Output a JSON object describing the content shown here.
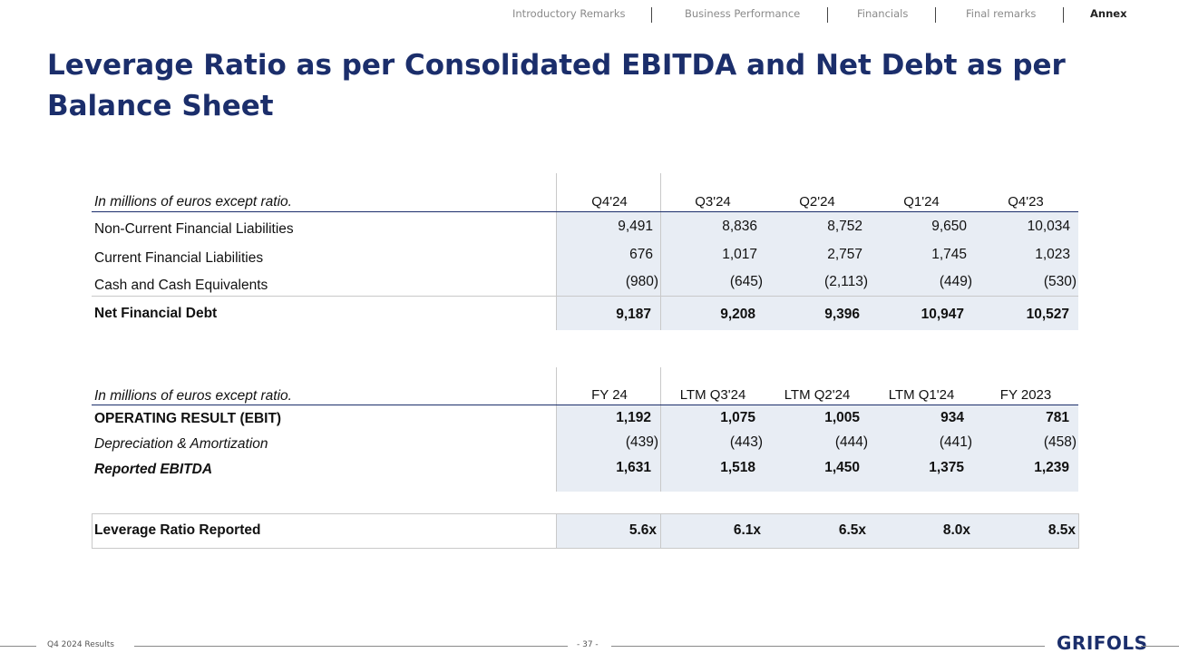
{
  "nav": {
    "items": [
      "Introductory Remarks",
      "Business Performance",
      "Financials",
      "Final remarks",
      "Annex"
    ]
  },
  "page": {
    "title": "Leverage Ratio as per Consolidated EBITDA and Net Debt as per Balance Sheet"
  },
  "table1": {
    "caption": "In millions of euros except ratio.",
    "columns": [
      "Q4'24",
      "Q3'24",
      "Q2'24",
      "Q1'24",
      "Q4'23"
    ],
    "rows": [
      {
        "label": "Non-Current Financial Liabilities",
        "values": [
          "9,491",
          "8,836",
          "8,752",
          "9,650",
          "10,034"
        ]
      },
      {
        "label": "Current Financial Liabilities",
        "values": [
          "676",
          "1,017",
          "2,757",
          "1,745",
          "1,023"
        ]
      },
      {
        "label": "Cash and Cash Equivalents",
        "values": [
          "(980)",
          "(645)",
          "(2,113)",
          "(449)",
          "(530)"
        ]
      },
      {
        "label": "Net Financial Debt",
        "values": [
          "9,187",
          "9,208",
          "9,396",
          "10,947",
          "10,527"
        ]
      }
    ]
  },
  "table2": {
    "caption": "In millions of euros except ratio.",
    "columns": [
      "FY 24",
      "LTM Q3'24",
      "LTM Q2'24",
      "LTM Q1'24",
      "FY 2023"
    ],
    "rows": [
      {
        "label": "OPERATING RESULT (EBIT)",
        "values": [
          "1,192",
          "1,075",
          "1,005",
          "934",
          "781"
        ]
      },
      {
        "label": "Depreciation & Amortization",
        "values": [
          "(439)",
          "(443)",
          "(444)",
          "(441)",
          "(458)"
        ]
      },
      {
        "label": "Reported EBITDA",
        "values": [
          "1,631",
          "1,518",
          "1,450",
          "1,375",
          "1,239"
        ]
      }
    ]
  },
  "leverage": {
    "label": "Leverage Ratio Reported",
    "values": [
      "5.6x",
      "6.1x",
      "6.5x",
      "8.0x",
      "8.5x"
    ]
  },
  "footer": {
    "left": "Q4 2024 Results",
    "page": "- 37 -",
    "logo": "GRIFOLS"
  }
}
